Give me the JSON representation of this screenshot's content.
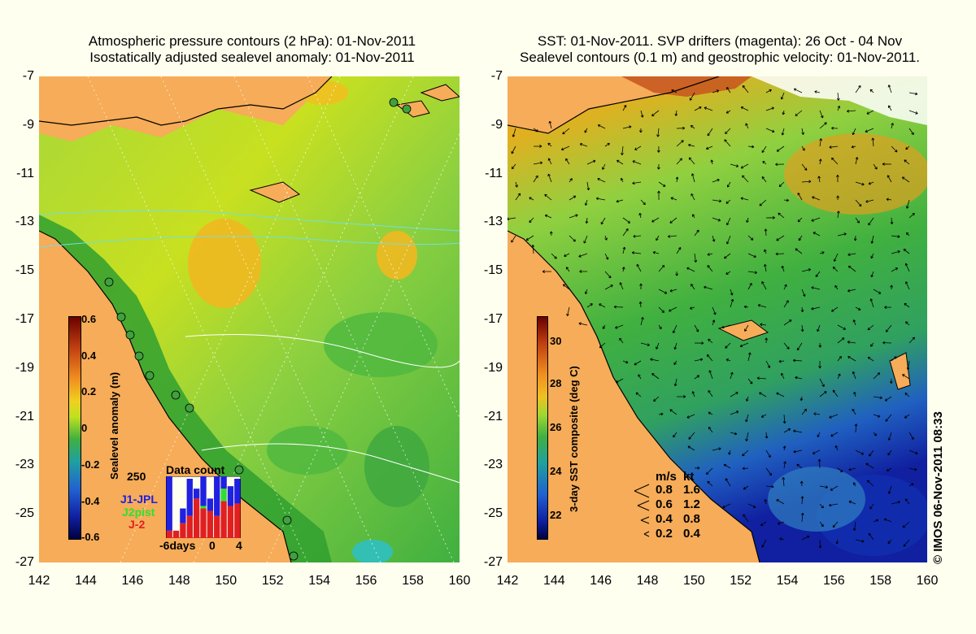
{
  "left_panel": {
    "title_line1": "Atmospheric pressure contours (2 hPa): 01-Nov-2011",
    "title_line2": "Isostatically adjusted sealevel anomaly: 01-Nov-2011",
    "colorbar": {
      "title": "Sealevel anomaly (m)",
      "ticks": [
        "0.6",
        "0.4",
        "0.2",
        "0",
        "-0.2",
        "-0.4",
        "-0.6"
      ]
    },
    "data_count": {
      "title": "Data count",
      "ymax_label": "250",
      "x_labels": [
        "-6days",
        "0",
        "4"
      ],
      "legend": [
        "J1-JPL",
        "J2pist",
        "J-2"
      ],
      "legend_colors": [
        "#2020e0",
        "#30e030",
        "#e02020"
      ],
      "red_counts": [
        30,
        30,
        60,
        90,
        160,
        120,
        110,
        90,
        150,
        130,
        140
      ],
      "blue_counts": [
        220,
        0,
        60,
        150,
        40,
        210,
        50,
        170,
        70,
        80,
        100
      ],
      "green_counts": [
        0,
        0,
        0,
        0,
        0,
        10,
        0,
        0,
        50,
        0,
        0
      ]
    }
  },
  "right_panel": {
    "title_line1": "SST: 01-Nov-2011. SVP drifters (magenta): 26 Oct - 04 Nov",
    "title_line2": "Sealevel contours (0.1 m) and geostrophic velocity: 01-Nov-2011.",
    "colorbar": {
      "title": "3-day SST composite (deg C)",
      "ticks": [
        "30",
        "28",
        "26",
        "24",
        "22"
      ]
    },
    "velocity_legend": {
      "header": [
        "m/s",
        "kt"
      ],
      "rows": [
        [
          "0.8",
          "1.6"
        ],
        [
          "0.6",
          "1.2"
        ],
        [
          "0.4",
          "0.8"
        ],
        [
          "0.2",
          "0.4"
        ]
      ]
    },
    "copyright": "© IMOS 06-Nov-2011 08:33"
  },
  "axes": {
    "lat_labels": [
      "-7",
      "-9",
      "-11",
      "-13",
      "-15",
      "-17",
      "-19",
      "-21",
      "-23",
      "-25",
      "-27"
    ],
    "lon_labels": [
      "142",
      "144",
      "146",
      "148",
      "150",
      "152",
      "154",
      "156",
      "158",
      "160"
    ]
  },
  "colors": {
    "land": "#f6ac58",
    "background": "#fffff0"
  }
}
